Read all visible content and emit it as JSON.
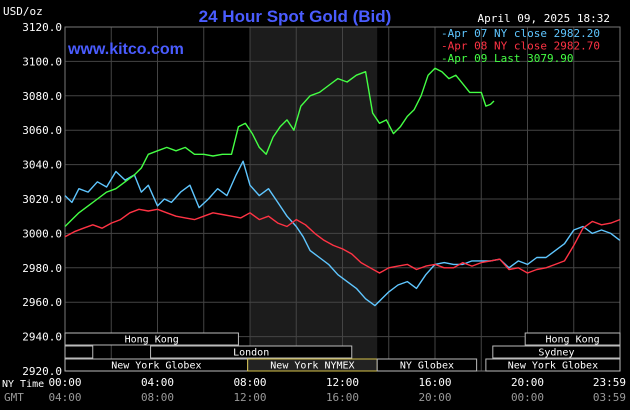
{
  "header": {
    "title": "24 Hour Spot Gold (Bid)",
    "unit": "USD/oz",
    "timestamp": "April 09, 2025 18:32",
    "site": "www.kitco.com"
  },
  "colors": {
    "background": "#000000",
    "grid": "#444444",
    "highlight": "#1c1c1c",
    "title": "#4a5cff",
    "apr07": "#5fc6ff",
    "apr08": "#ff3344",
    "apr09": "#44ff44"
  },
  "axis_labels": {
    "ny_time": "NY Time",
    "gmt": "GMT"
  },
  "legend": [
    {
      "text": "Apr 07 NY close 2982.20",
      "color": "#5fc6ff"
    },
    {
      "text": "Apr 08 NY close 2982.70",
      "color": "#ff3344"
    },
    {
      "text": "Apr 09 Last 3079.90",
      "color": "#44ff44"
    }
  ],
  "sessions": [
    {
      "label": "Hong Kong",
      "start": 0,
      "end": 7.5,
      "row": 0,
      "active": false
    },
    {
      "label": "Hong Kong",
      "start": 19.9,
      "end": 24,
      "row": 0,
      "active": false
    },
    {
      "label": "",
      "start": 0,
      "end": 1.2,
      "row": 1,
      "active": false
    },
    {
      "label": "London",
      "start": 3.7,
      "end": 12.4,
      "row": 1,
      "active": false
    },
    {
      "label": "Sydney",
      "start": 18.5,
      "end": 24,
      "row": 1,
      "active": false
    },
    {
      "label": "New York Globex",
      "start": 0,
      "end": 7.9,
      "row": 2,
      "active": false
    },
    {
      "label": "New York NYMEX",
      "start": 7.9,
      "end": 13.5,
      "row": 2,
      "active": true
    },
    {
      "label": "NY Globex",
      "start": 13.5,
      "end": 17.8,
      "row": 2,
      "active": false
    },
    {
      "label": "New York Globex",
      "start": 18.2,
      "end": 24,
      "row": 2,
      "active": false
    }
  ],
  "chart_data": {
    "type": "line",
    "title": "24 Hour Spot Gold (Bid)",
    "ylabel": "USD/oz",
    "xlim": [
      0,
      24
    ],
    "ylim": [
      2920,
      3120
    ],
    "highlight_range": [
      8,
      13.5
    ],
    "x_ticks": [
      "00:00",
      "04:00",
      "08:00",
      "12:00",
      "16:00",
      "20:00",
      "23:59"
    ],
    "x_ticks_gmt": [
      "04:00",
      "08:00",
      "12:00",
      "16:00",
      "20:00",
      "00:00",
      "03:59"
    ],
    "y_ticks": [
      "2920.0",
      "2940.0",
      "2960.0",
      "2980.0",
      "3000.0",
      "3020.0",
      "3040.0",
      "3060.0",
      "3080.0",
      "3100.0",
      "3120.0"
    ],
    "grid": true,
    "series": [
      {
        "name": "Apr 07 NY close 2982.20",
        "color": "#5fc6ff",
        "x": [
          0,
          0.3,
          0.6,
          1.0,
          1.4,
          1.8,
          2.2,
          2.6,
          3.0,
          3.3,
          3.6,
          4.0,
          4.3,
          4.6,
          5.0,
          5.4,
          5.8,
          6.2,
          6.6,
          7.0,
          7.4,
          7.7,
          8.0,
          8.4,
          8.8,
          9.2,
          9.6,
          10.0,
          10.3,
          10.6,
          11.0,
          11.4,
          11.8,
          12.2,
          12.6,
          13.0,
          13.4,
          13.7,
          14.0,
          14.4,
          14.8,
          15.2,
          15.6,
          16.0,
          16.4,
          16.8,
          17.2,
          17.6,
          18.0,
          18.4,
          18.8,
          19.2,
          19.6,
          20.0,
          20.4,
          20.8,
          21.2,
          21.6,
          22.0,
          22.4,
          22.8,
          23.2,
          23.6,
          23.99
        ],
        "y": [
          3022,
          3018,
          3026,
          3024,
          3030,
          3027,
          3036,
          3031,
          3034,
          3024,
          3028,
          3016,
          3020,
          3018,
          3024,
          3028,
          3015,
          3020,
          3026,
          3022,
          3034,
          3042,
          3028,
          3022,
          3026,
          3018,
          3010,
          3004,
          2998,
          2990,
          2986,
          2982,
          2976,
          2972,
          2968,
          2962,
          2958,
          2962,
          2966,
          2970,
          2972,
          2968,
          2976,
          2982,
          2983,
          2982,
          2982,
          2984,
          2984,
          2984,
          2985,
          2980,
          2984,
          2982,
          2986,
          2986,
          2990,
          2994,
          3002,
          3004,
          3000,
          3002,
          3000,
          2996
        ]
      },
      {
        "name": "Apr 08 NY close 2982.70",
        "color": "#ff3344",
        "x": [
          0,
          0.4,
          0.8,
          1.2,
          1.6,
          2.0,
          2.4,
          2.8,
          3.2,
          3.6,
          4.0,
          4.4,
          4.8,
          5.2,
          5.6,
          6.0,
          6.4,
          6.8,
          7.2,
          7.6,
          8.0,
          8.4,
          8.8,
          9.2,
          9.6,
          10.0,
          10.4,
          10.8,
          11.2,
          11.6,
          12.0,
          12.4,
          12.8,
          13.2,
          13.6,
          14.0,
          14.4,
          14.8,
          15.2,
          15.6,
          16.0,
          16.4,
          16.8,
          17.2,
          17.6,
          18.0,
          18.4,
          18.8,
          19.2,
          19.6,
          20.0,
          20.4,
          20.8,
          21.2,
          21.6,
          22.0,
          22.4,
          22.8,
          23.2,
          23.6,
          23.99
        ],
        "y": [
          2998,
          3001,
          3003,
          3005,
          3003,
          3006,
          3008,
          3012,
          3014,
          3013,
          3014,
          3012,
          3010,
          3009,
          3008,
          3010,
          3012,
          3011,
          3010,
          3009,
          3012,
          3008,
          3010,
          3006,
          3004,
          3008,
          3005,
          3000,
          2996,
          2993,
          2991,
          2988,
          2983,
          2980,
          2977,
          2980,
          2981,
          2982,
          2979,
          2981,
          2982,
          2980,
          2980,
          2983,
          2981,
          2983,
          2984,
          2985,
          2979,
          2980,
          2977,
          2979,
          2980,
          2982,
          2984,
          2993,
          3003,
          3007,
          3005,
          3006,
          3008
        ]
      },
      {
        "name": "Apr 09 Last 3079.90",
        "color": "#44ff44",
        "x": [
          0,
          0.3,
          0.6,
          1.0,
          1.4,
          1.8,
          2.2,
          2.6,
          3.0,
          3.3,
          3.6,
          4.0,
          4.4,
          4.8,
          5.2,
          5.6,
          6.0,
          6.4,
          6.8,
          7.2,
          7.5,
          7.8,
          8.1,
          8.4,
          8.7,
          9.0,
          9.3,
          9.6,
          9.9,
          10.2,
          10.6,
          11.0,
          11.4,
          11.8,
          12.2,
          12.6,
          13.0,
          13.3,
          13.6,
          13.9,
          14.2,
          14.5,
          14.8,
          15.1,
          15.4,
          15.7,
          16.0,
          16.3,
          16.6,
          16.9,
          17.2,
          17.5,
          17.8,
          18.0,
          18.2,
          18.4,
          18.55
        ],
        "y": [
          3004,
          3008,
          3012,
          3016,
          3020,
          3024,
          3026,
          3030,
          3034,
          3038,
          3046,
          3048,
          3050,
          3048,
          3050,
          3046,
          3046,
          3045,
          3046,
          3046,
          3062,
          3064,
          3058,
          3050,
          3046,
          3056,
          3062,
          3066,
          3060,
          3074,
          3080,
          3082,
          3086,
          3090,
          3088,
          3092,
          3094,
          3070,
          3064,
          3066,
          3058,
          3062,
          3068,
          3072,
          3080,
          3092,
          3096,
          3094,
          3090,
          3092,
          3087,
          3082,
          3082,
          3082,
          3074,
          3075,
          3077
        ]
      }
    ]
  }
}
